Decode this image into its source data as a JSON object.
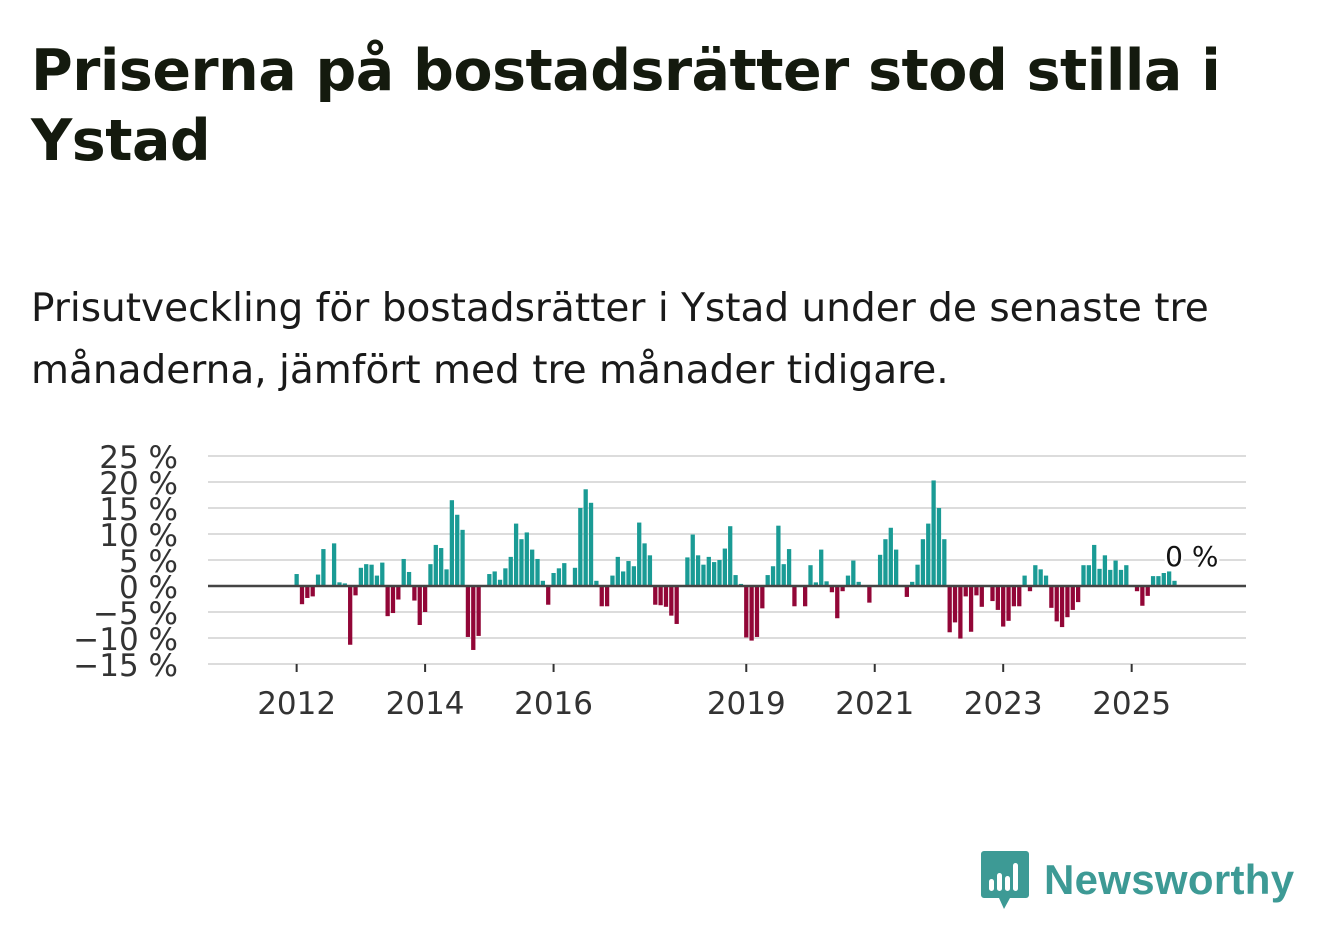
{
  "title": "Priserna på bostadsrätter stod stilla i Ystad",
  "subtitle": "Prisutveckling för bostadsrätter i Ystad under de senaste tre månaderna, jämfört med tre månader tidigare.",
  "brand": {
    "name": "Newsworthy",
    "icon": "newsworthy-bar-chart-icon"
  },
  "colors": {
    "positive": "#1a9b95",
    "negative": "#920637",
    "grid": "#dcdcdc",
    "zero": "#444444",
    "brand": "#3d9a95"
  },
  "chart_data": {
    "type": "bar",
    "title": "",
    "xlabel": "",
    "ylabel": "",
    "ylim": [
      -15,
      25
    ],
    "y_ticks": [
      25,
      20,
      15,
      10,
      5,
      0,
      -5,
      -10,
      -15
    ],
    "y_tick_labels": [
      "25 %",
      "20 %",
      "15 %",
      "10 %",
      "5 %",
      "0 %",
      "−5 %",
      "−10 %",
      "−15 %"
    ],
    "x_range": [
      2010.62,
      2026.78
    ],
    "x_ticks": [
      {
        "value": 2012.0,
        "label": "2012"
      },
      {
        "value": 2014.0,
        "label": "2014"
      },
      {
        "value": 2016.0,
        "label": "2016"
      },
      {
        "value": 2019.0,
        "label": "2019"
      },
      {
        "value": 2021.0,
        "label": "2021"
      },
      {
        "value": 2023.0,
        "label": "2023"
      },
      {
        "value": 2025.0,
        "label": "2025"
      }
    ],
    "series": [
      {
        "name": "Prisutveckling (%)",
        "start": "2012-01",
        "frequency": "monthly",
        "values": [
          2.3,
          -3.5,
          -2.3,
          -2.0,
          2.2,
          7.1,
          0,
          8.2,
          0.7,
          0.5,
          -11.3,
          -1.8,
          3.5,
          4.2,
          4.1,
          2.0,
          4.5,
          -5.8,
          -5.2,
          -2.6,
          5.2,
          2.7,
          -2.8,
          -7.5,
          -5.0,
          4.2,
          7.9,
          7.3,
          3.2,
          16.5,
          13.7,
          10.8,
          -9.8,
          -12.3,
          -9.6,
          0,
          2.3,
          2.8,
          1.2,
          3.4,
          5.6,
          12.0,
          9.0,
          10.3,
          7.0,
          5.2,
          1.0,
          -3.6,
          2.5,
          3.4,
          4.4,
          0,
          3.5,
          15.0,
          18.6,
          16.0,
          1.0,
          -3.9,
          -3.9,
          2.0,
          5.6,
          2.8,
          4.8,
          3.8,
          12.2,
          8.2,
          5.9,
          -3.6,
          -3.7,
          -4.0,
          -5.7,
          -7.3,
          0,
          5.5,
          9.9,
          5.9,
          4.1,
          5.6,
          4.6,
          5.0,
          7.2,
          11.5,
          2.1,
          0.4,
          -9.9,
          -10.5,
          -9.8,
          -4.3,
          2.1,
          3.8,
          11.6,
          4.2,
          7.1,
          -3.9,
          0,
          -3.9,
          4.0,
          0.7,
          7.0,
          0.9,
          -1.2,
          -6.2,
          -1.0,
          2.0,
          4.9,
          0.8,
          0,
          -3.2,
          0,
          6.0,
          9.0,
          11.2,
          7.0,
          0,
          -2.1,
          0.8,
          4.1,
          9.0,
          12.0,
          20.3,
          15.0,
          9.0,
          -8.9,
          -7.0,
          -10.1,
          -2.0,
          -8.8,
          -1.8,
          -4.0,
          0,
          -2.9,
          -4.6,
          -7.8,
          -6.7,
          -3.9,
          -3.9,
          2.0,
          -1.0,
          4.0,
          3.2,
          2.0,
          -4.2,
          -6.8,
          -7.9,
          -6.0,
          -4.6,
          -3.1,
          4.0,
          4.0,
          7.9,
          3.3,
          5.9,
          3.1,
          4.9,
          3.1,
          4.0,
          0,
          -1.0,
          -3.8,
          -1.9,
          1.9,
          1.9,
          2.5,
          2.8,
          1.0,
          0
        ]
      }
    ],
    "annotation": {
      "label": "0 %",
      "value": 0,
      "date": "2025-10"
    }
  }
}
